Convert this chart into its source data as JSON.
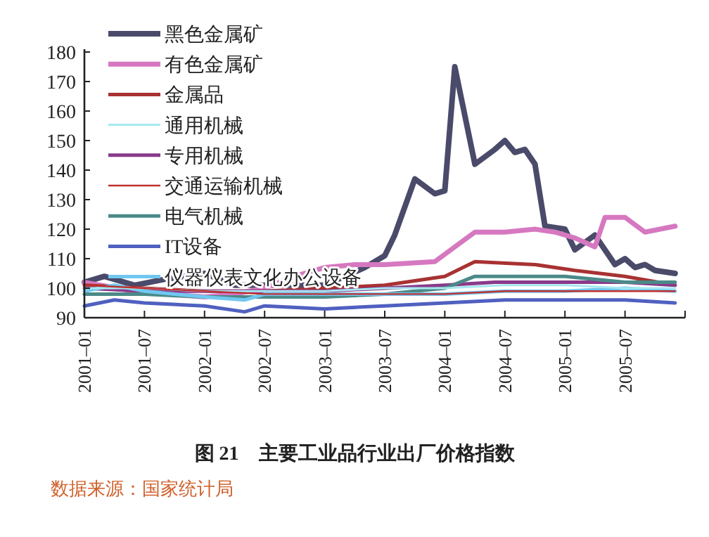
{
  "chart_data": {
    "type": "line",
    "title": "图 21　主要工业品行业出厂价格指数",
    "annotations": [
      "数据来源：国家统计局"
    ],
    "xlim": [
      "2001-01",
      "2006-01"
    ],
    "xticks": [
      {
        "value": "2001-01",
        "label": "2001–01"
      },
      {
        "value": "2001-07",
        "label": "2001–07"
      },
      {
        "value": "2002-01",
        "label": "2002–01"
      },
      {
        "value": "2002-07",
        "label": "2002–07"
      },
      {
        "value": "2003-01",
        "label": "2003–01"
      },
      {
        "value": "2003-07",
        "label": "2003–07"
      },
      {
        "value": "2004-01",
        "label": "2004–01"
      },
      {
        "value": "2004-07",
        "label": "2004–07"
      },
      {
        "value": "2005-01",
        "label": "2005–01"
      },
      {
        "value": "2005-07",
        "label": "2005–07"
      },
      {
        "value": "2006-01",
        "label": null
      }
    ],
    "ylim": [
      90,
      180
    ],
    "yticks": [
      90,
      100,
      110,
      120,
      130,
      140,
      150,
      160,
      170,
      180
    ],
    "grid": false,
    "legend": "top left",
    "marker": "none",
    "line_style": "solid",
    "series": [
      {
        "name": "黑色金属矿",
        "color": "#4a4a6a",
        "x": [
          "2001-01",
          "2001-03",
          "2001-06",
          "2001-09",
          "2002-01",
          "2002-04",
          "2002-07",
          "2002-10",
          "2003-01",
          "2003-03",
          "2003-05",
          "2003-07",
          "2003-08",
          "2003-10",
          "2003-12",
          "2004-01",
          "2004-02",
          "2004-04",
          "2004-06",
          "2004-07",
          "2004-08",
          "2004-09",
          "2004-10",
          "2004-11",
          "2005-01",
          "2005-02",
          "2005-04",
          "2005-06",
          "2005-07",
          "2005-08",
          "2005-09",
          "2005-10",
          "2005-12"
        ],
        "values": [
          102,
          104,
          101,
          103,
          105,
          101,
          101,
          101,
          101,
          104,
          107,
          111,
          118,
          137,
          132,
          133,
          175,
          142,
          147,
          150,
          146,
          147,
          142,
          121,
          120,
          113,
          118,
          108,
          110,
          107,
          108,
          106,
          105
        ]
      },
      {
        "name": "有色金属矿",
        "color": "#d678c0",
        "x": [
          "2001-01",
          "2001-06",
          "2002-01",
          "2002-04",
          "2002-07",
          "2002-10",
          "2003-01",
          "2003-04",
          "2003-07",
          "2003-12",
          "2004-02",
          "2004-04",
          "2004-07",
          "2004-10",
          "2004-12",
          "2005-02",
          "2005-04",
          "2005-05",
          "2005-07",
          "2005-09",
          "2005-12"
        ],
        "values": [
          102,
          99,
          97,
          98,
          100,
          104,
          107,
          108,
          108,
          109,
          114,
          119,
          119,
          120,
          119,
          117,
          114,
          124,
          124,
          119,
          121
        ]
      },
      {
        "name": "金属品",
        "color": "#a83232",
        "x": [
          "2001-01",
          "2001-07",
          "2002-01",
          "2002-07",
          "2003-01",
          "2003-07",
          "2004-01",
          "2004-04",
          "2004-10",
          "2005-02",
          "2005-07",
          "2005-12"
        ],
        "values": [
          101,
          100,
          99,
          99,
          100,
          101,
          104,
          109,
          108,
          106,
          104,
          101
        ]
      },
      {
        "name": "通用机械",
        "color": "#a8e8f0",
        "x": [
          "2001-01",
          "2001-07",
          "2002-01",
          "2002-07",
          "2003-01",
          "2003-07",
          "2004-01",
          "2004-07",
          "2005-01",
          "2005-07",
          "2005-12"
        ],
        "values": [
          100,
          100,
          99,
          99,
          99,
          100,
          100,
          101,
          101,
          100,
          100
        ]
      },
      {
        "name": "专用机械",
        "color": "#8a3a8a",
        "x": [
          "2001-01",
          "2001-07",
          "2002-01",
          "2002-07",
          "2003-01",
          "2003-07",
          "2004-01",
          "2004-06",
          "2005-01",
          "2005-07",
          "2005-12"
        ],
        "values": [
          100,
          99,
          99,
          99,
          99,
          100,
          101,
          102,
          102,
          102,
          101
        ]
      },
      {
        "name": "交通运输机械",
        "color": "#c03030",
        "x": [
          "2001-01",
          "2001-07",
          "2002-01",
          "2002-07",
          "2003-01",
          "2003-07",
          "2004-01",
          "2004-07",
          "2005-01",
          "2005-07",
          "2005-12"
        ],
        "values": [
          101,
          100,
          99,
          98,
          98,
          98,
          98,
          99,
          99,
          99,
          99
        ]
      },
      {
        "name": "电气机械",
        "color": "#4a8a88",
        "x": [
          "2001-01",
          "2001-07",
          "2002-01",
          "2002-07",
          "2003-01",
          "2003-07",
          "2004-01",
          "2004-04",
          "2005-01",
          "2005-07",
          "2005-12"
        ],
        "values": [
          98,
          98,
          97,
          97,
          97,
          98,
          100,
          104,
          104,
          102,
          102
        ]
      },
      {
        "name": "IT设备",
        "color": "#5060c0",
        "x": [
          "2001-01",
          "2001-04",
          "2001-07",
          "2002-01",
          "2002-05",
          "2002-07",
          "2003-01",
          "2003-07",
          "2004-01",
          "2004-07",
          "2005-01",
          "2005-07",
          "2005-12"
        ],
        "values": [
          94,
          96,
          95,
          94,
          92,
          94,
          93,
          94,
          95,
          96,
          96,
          96,
          95
        ]
      },
      {
        "name": "仪器仪表文化办公设备",
        "color": "#70c8f0",
        "x": [
          "2001-01",
          "2001-04",
          "2001-07",
          "2002-01",
          "2002-05",
          "2002-07",
          "2003-01",
          "2003-07",
          "2004-01",
          "2004-07",
          "2005-01",
          "2005-07",
          "2005-12"
        ],
        "values": [
          99,
          101,
          99,
          97,
          96,
          98,
          98,
          98,
          98,
          99,
          99,
          100,
          99
        ]
      }
    ]
  }
}
